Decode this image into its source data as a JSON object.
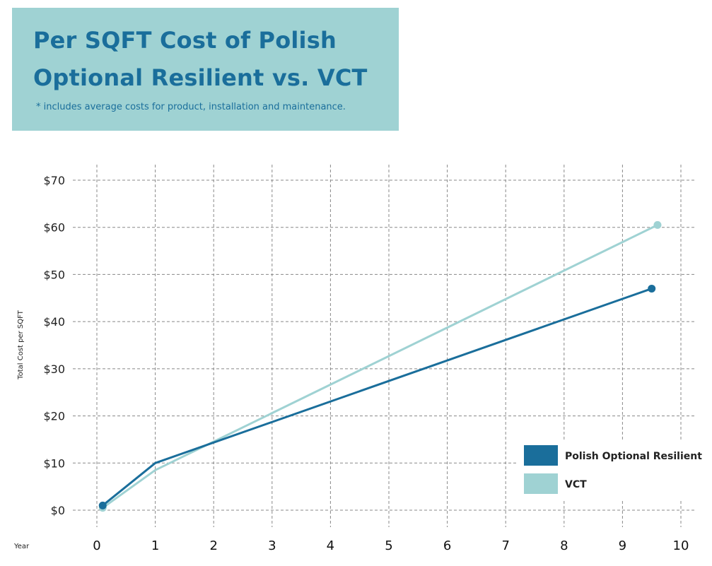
{
  "title_line1": "Per SQFT Cost of Polish",
  "title_line2": "Optional Resilient vs. VCT",
  "subtitle": "* includes average costs for product, installation and maintenance.",
  "chart_data": {
    "type": "line",
    "title": "Per SQFT Cost of Polish Optional Resilient vs. VCT",
    "xlabel": "Year",
    "ylabel": "Total Cost per SQFT",
    "x_ticks": [
      "0",
      "1",
      "2",
      "3",
      "4",
      "5",
      "6",
      "7",
      "8",
      "9",
      "10"
    ],
    "y_ticks": [
      "$0",
      "$10",
      "$20",
      "$30",
      "$40",
      "$50",
      "$60",
      "$70"
    ],
    "xlim": [
      0,
      10
    ],
    "ylim": [
      0,
      70
    ],
    "grid": true,
    "legend_position": "bottom-right",
    "series": [
      {
        "name": "Polish Optional Resilient",
        "color": "#1a6e9b",
        "points": [
          [
            0.1,
            1
          ],
          [
            1,
            10
          ],
          [
            9.5,
            47
          ]
        ],
        "end_markers": true
      },
      {
        "name": "VCT",
        "color": "#9fd2d3",
        "points": [
          [
            0.1,
            0.5
          ],
          [
            1,
            8.5
          ],
          [
            9.6,
            60.5
          ]
        ],
        "end_markers": true
      }
    ]
  }
}
